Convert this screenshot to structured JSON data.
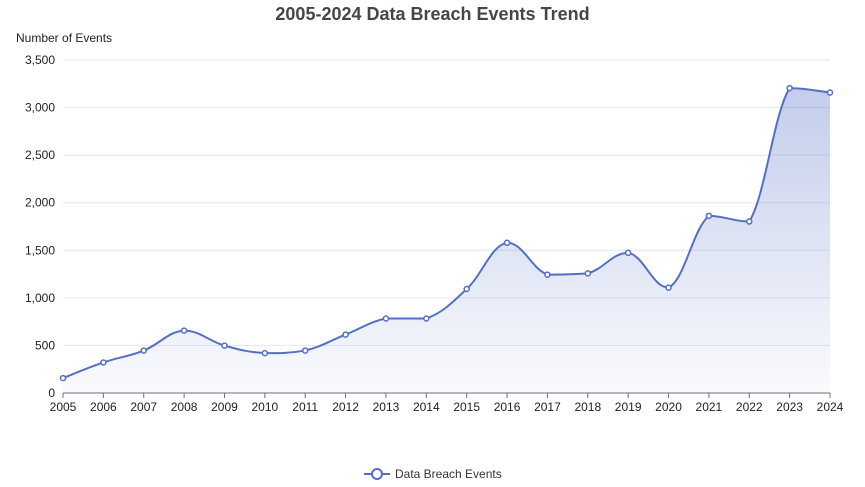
{
  "chart_data": {
    "type": "line",
    "title": "2005-2024 Data Breach Events Trend",
    "xlabel": "",
    "ylabel": "Number of Events",
    "ylim": [
      0,
      3500
    ],
    "yticks": [
      0,
      500,
      1000,
      1500,
      2000,
      2500,
      3000,
      3500
    ],
    "ytick_labels": [
      "0",
      "500",
      "1,000",
      "1,500",
      "2,000",
      "2,500",
      "3,000",
      "3,500"
    ],
    "grid": true,
    "legend_position": "bottom-center",
    "categories": [
      "2005",
      "2006",
      "2007",
      "2008",
      "2009",
      "2010",
      "2011",
      "2012",
      "2013",
      "2014",
      "2015",
      "2016",
      "2017",
      "2018",
      "2019",
      "2020",
      "2021",
      "2022",
      "2023",
      "2024"
    ],
    "series": [
      {
        "name": "Data Breach Events",
        "color": "#5470c6",
        "values": [
          157,
          321,
          446,
          656,
          498,
          419,
          446,
          614,
          783,
          783,
          1093,
          1579,
          1244,
          1257,
          1473,
          1108,
          1862,
          1802,
          3205,
          3158
        ]
      }
    ]
  }
}
